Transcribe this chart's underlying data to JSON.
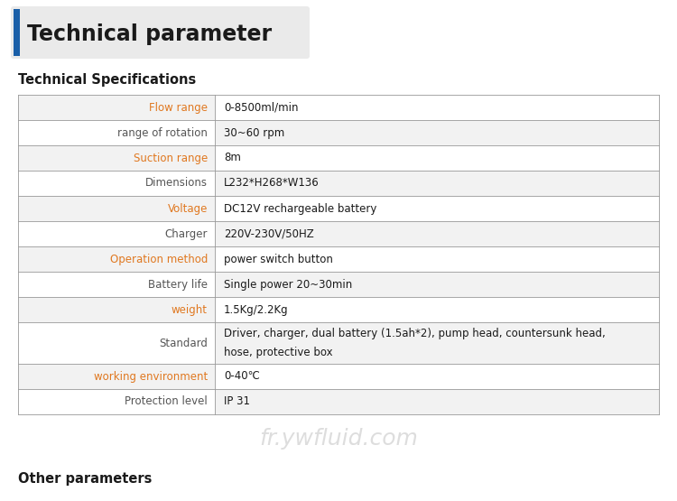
{
  "title": "Technical parameter",
  "subtitle": "Technical Specifications",
  "footer": "Other parameters",
  "watermark": "fr.ywfluid.com",
  "table_rows": [
    {
      "param": "Flow range",
      "value": "0-8500ml/min",
      "highlight": true
    },
    {
      "param": "range of rotation",
      "value": "30~60 rpm",
      "highlight": false
    },
    {
      "param": "Suction range",
      "value": "8m",
      "highlight": true
    },
    {
      "param": "Dimensions",
      "value": "L232*H268*W136",
      "highlight": false
    },
    {
      "param": "Voltage",
      "value": "DC12V rechargeable battery",
      "highlight": true
    },
    {
      "param": "Charger",
      "value": "220V-230V/50HZ",
      "highlight": false
    },
    {
      "param": "Operation method",
      "value": "power switch button",
      "highlight": true
    },
    {
      "param": "Battery life",
      "value": "Single power 20~30min",
      "highlight": false
    },
    {
      "param": "weight",
      "value": "1.5Kg/2.2Kg",
      "highlight": true
    },
    {
      "param": "Standard",
      "value": "Driver, charger, dual battery (1.5ah*2), pump head, countersunk head,\nhose, protective box",
      "highlight": false
    },
    {
      "param": "working environment",
      "value": "0-40℃",
      "highlight": true
    },
    {
      "param": "Protection level",
      "value": "IP 31",
      "highlight": false
    }
  ],
  "param_color_highlight": "#E07820",
  "param_color_normal": "#555555",
  "value_color": "#1A1A1A",
  "title_bar_color": "#1A5FA8",
  "title_bg": "#EAEAEA",
  "row_bg_light": "#F2F2F2",
  "row_bg_white": "#FFFFFF",
  "border_color": "#999999",
  "title_fontsize": 17,
  "subtitle_fontsize": 10.5,
  "param_fontsize": 8.5,
  "value_fontsize": 8.5,
  "footer_fontsize": 10.5,
  "watermark_fontsize": 18
}
